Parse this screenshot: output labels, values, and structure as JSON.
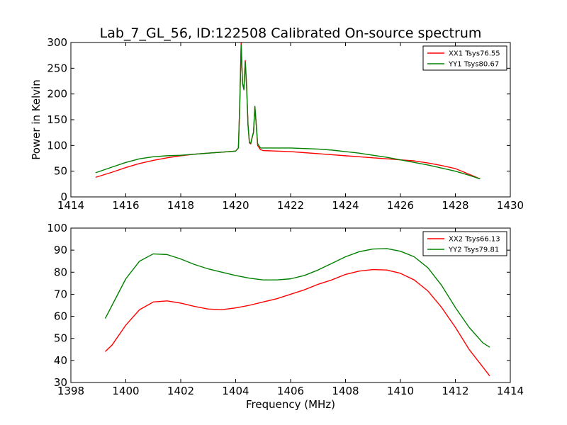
{
  "title": "Lab_7_GL_56, ID:122508 Calibrated On-source spectrum",
  "chart_data": [
    {
      "type": "line",
      "xlabel": "",
      "ylabel": "Power in Kelvin",
      "xlim": [
        1414,
        1430
      ],
      "ylim": [
        0,
        300
      ],
      "xticks": [
        1414,
        1416,
        1418,
        1420,
        1422,
        1424,
        1426,
        1428,
        1430
      ],
      "yticks": [
        0,
        50,
        100,
        150,
        200,
        250,
        300
      ],
      "legend_position": "top-right",
      "series": [
        {
          "name": "XX1 Tsys76.55",
          "color": "#ff0000",
          "x": [
            1414.9,
            1415.5,
            1416,
            1416.5,
            1417,
            1417.5,
            1418,
            1418.5,
            1419,
            1419.5,
            1420,
            1420.1,
            1420.15,
            1420.2,
            1420.25,
            1420.3,
            1420.35,
            1420.4,
            1420.45,
            1420.5,
            1420.55,
            1420.6,
            1420.65,
            1420.7,
            1420.75,
            1420.8,
            1420.9,
            1421,
            1421.5,
            1422,
            1422.5,
            1423,
            1423.5,
            1424,
            1424.5,
            1425,
            1425.5,
            1426,
            1426.5,
            1427,
            1427.5,
            1428,
            1428.5,
            1428.9
          ],
          "y": [
            38,
            48,
            57,
            65,
            71,
            76,
            80,
            83,
            85,
            87,
            89,
            95,
            180,
            300,
            220,
            210,
            265,
            215,
            140,
            105,
            103,
            115,
            125,
            175,
            140,
            100,
            92,
            90,
            89,
            88,
            86,
            84,
            82,
            80,
            78,
            76,
            74,
            72,
            70,
            66,
            61,
            55,
            44,
            35
          ]
        },
        {
          "name": "YY1 Tsys80.67",
          "color": "#008000",
          "x": [
            1414.9,
            1415.5,
            1416,
            1416.5,
            1417,
            1417.5,
            1418,
            1418.5,
            1419,
            1419.5,
            1420,
            1420.1,
            1420.15,
            1420.2,
            1420.25,
            1420.3,
            1420.35,
            1420.4,
            1420.45,
            1420.5,
            1420.55,
            1420.6,
            1420.65,
            1420.7,
            1420.75,
            1420.8,
            1420.9,
            1421,
            1421.5,
            1422,
            1422.5,
            1423,
            1423.5,
            1424,
            1424.5,
            1425,
            1425.5,
            1426,
            1426.5,
            1427,
            1427.5,
            1428,
            1428.5,
            1428.9
          ],
          "y": [
            47,
            58,
            67,
            74,
            78,
            80,
            81,
            83,
            85,
            87,
            89,
            95,
            180,
            295,
            220,
            208,
            262,
            212,
            140,
            106,
            104,
            116,
            126,
            176,
            141,
            104,
            95,
            95,
            95,
            95,
            94,
            93,
            91,
            88,
            85,
            81,
            77,
            72,
            67,
            62,
            56,
            50,
            42,
            35
          ]
        }
      ]
    },
    {
      "type": "line",
      "xlabel": "Frequency (MHz)",
      "ylabel": "",
      "xlim": [
        1398,
        1414
      ],
      "ylim": [
        30,
        100
      ],
      "xticks": [
        1398,
        1400,
        1402,
        1404,
        1406,
        1408,
        1410,
        1412,
        1414
      ],
      "yticks": [
        30,
        40,
        50,
        60,
        70,
        80,
        90,
        100
      ],
      "legend_position": "top-right",
      "series": [
        {
          "name": "XX2 Tsys66.13",
          "color": "#ff0000",
          "x": [
            1399.25,
            1399.5,
            1400,
            1400.5,
            1401,
            1401.5,
            1402,
            1402.5,
            1403,
            1403.5,
            1404,
            1404.5,
            1405,
            1405.5,
            1406,
            1406.5,
            1407,
            1407.5,
            1408,
            1408.5,
            1409,
            1409.5,
            1410,
            1410.5,
            1411,
            1411.5,
            1412,
            1412.5,
            1413,
            1413.25
          ],
          "y": [
            44,
            47,
            56,
            63,
            66.5,
            67,
            66,
            64.5,
            63.3,
            63,
            63.8,
            65,
            66.5,
            68,
            70,
            72,
            74.5,
            76.5,
            79,
            80.5,
            81.2,
            81,
            79.5,
            76.5,
            71.5,
            64,
            55,
            45,
            37,
            33
          ]
        },
        {
          "name": "YY2 Tsys79.81",
          "color": "#008000",
          "x": [
            1399.25,
            1399.5,
            1400,
            1400.5,
            1401,
            1401.5,
            1402,
            1402.5,
            1403,
            1403.5,
            1404,
            1404.5,
            1405,
            1405.5,
            1406,
            1406.5,
            1407,
            1407.5,
            1408,
            1408.5,
            1409,
            1409.5,
            1410,
            1410.5,
            1411,
            1411.5,
            1412,
            1412.5,
            1413,
            1413.25
          ],
          "y": [
            59,
            65,
            77,
            85,
            88.3,
            88,
            86,
            83.5,
            81.5,
            80,
            78.5,
            77.3,
            76.5,
            76.5,
            77,
            78.5,
            81,
            84,
            87,
            89.3,
            90.5,
            90.7,
            89.5,
            87,
            82,
            74,
            64,
            55,
            48,
            46
          ]
        }
      ]
    }
  ]
}
